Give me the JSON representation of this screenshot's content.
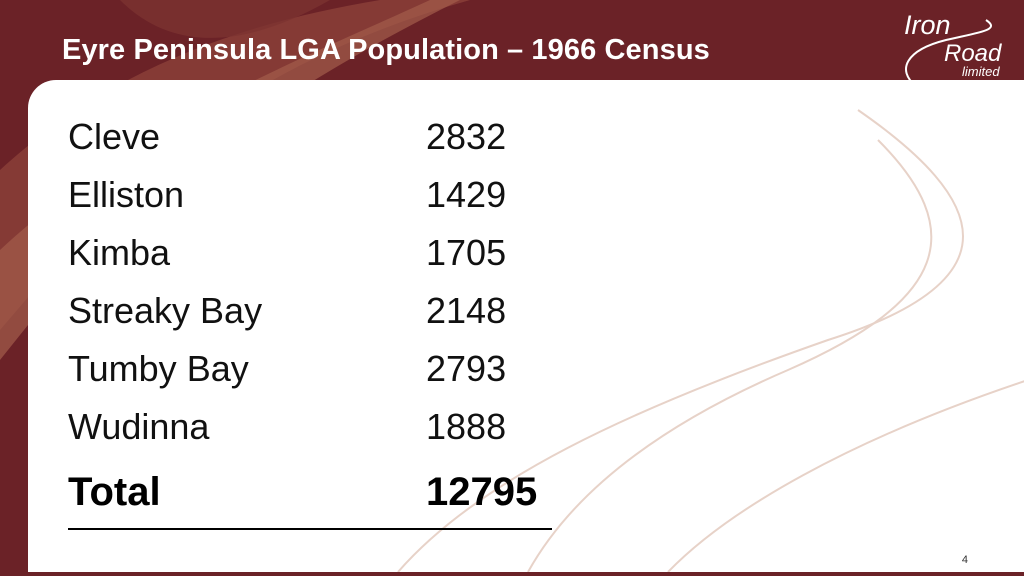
{
  "slide": {
    "title": "Eyre Peninsula LGA Population – 1966 Census",
    "logo": {
      "line1": "Iron",
      "line2": "Road",
      "line3": "limited"
    },
    "page_number": "4"
  },
  "table": {
    "rows": [
      {
        "name": "Cleve",
        "value": "2832"
      },
      {
        "name": "Elliston",
        "value": "1429"
      },
      {
        "name": "Kimba",
        "value": "1705"
      },
      {
        "name": "Streaky Bay",
        "value": "2148"
      },
      {
        "name": "Tumby Bay",
        "value": "2793"
      },
      {
        "name": "Wudinna",
        "value": "1888"
      }
    ],
    "total": {
      "name": "Total",
      "value": "12795"
    }
  },
  "colors": {
    "background": "#6b2227",
    "panel": "#ffffff",
    "accent_line": "#e7d2c8"
  }
}
